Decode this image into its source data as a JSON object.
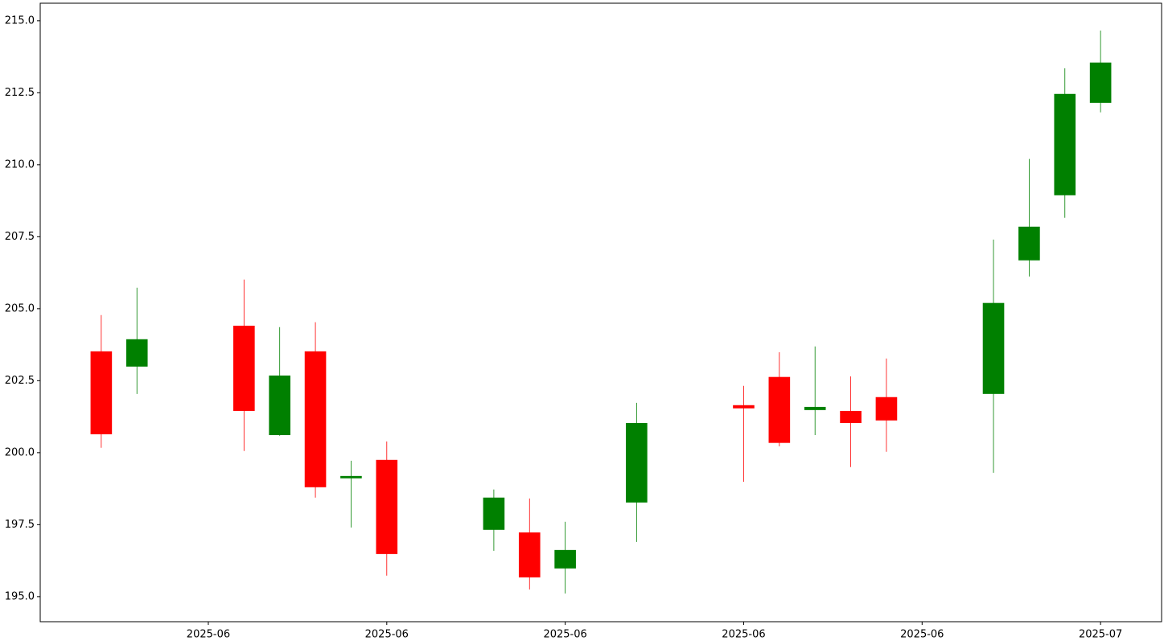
{
  "chart_data": {
    "type": "candlestick",
    "x": [
      20244,
      20245,
      20248,
      20249,
      20250,
      20251,
      20252,
      20255,
      20256,
      20257,
      20259,
      20262,
      20263,
      20264,
      20265,
      20266,
      20269,
      20270,
      20271,
      20272
    ],
    "open": [
      203.52,
      202.99,
      204.41,
      200.61,
      203.52,
      199.11,
      199.75,
      197.32,
      197.23,
      195.98,
      198.27,
      201.65,
      202.63,
      201.48,
      201.45,
      201.93,
      202.04,
      206.68,
      208.94,
      212.15
    ],
    "high": [
      204.78,
      205.73,
      206.01,
      204.36,
      204.53,
      199.72,
      200.39,
      198.72,
      198.41,
      197.6,
      201.73,
      202.32,
      203.49,
      203.69,
      202.65,
      203.27,
      207.4,
      210.2,
      213.35,
      214.66
    ],
    "low": [
      200.17,
      202.04,
      200.06,
      200.59,
      198.44,
      197.4,
      195.73,
      196.59,
      195.25,
      195.11,
      196.9,
      198.99,
      200.22,
      200.61,
      199.5,
      200.03,
      199.3,
      206.12,
      208.16,
      211.82
    ],
    "close": [
      200.64,
      203.94,
      201.45,
      202.68,
      198.8,
      199.19,
      196.48,
      198.44,
      195.67,
      196.62,
      201.03,
      201.54,
      200.34,
      201.59,
      201.03,
      201.12,
      205.2,
      207.85,
      212.46,
      213.55
    ],
    "up_color": "#008000",
    "down_color": "#ff0000",
    "xlim": [
      20242.29,
      20273.71
    ],
    "xticks": [
      {
        "value": 20247,
        "label": "2025-06"
      },
      {
        "value": 20252,
        "label": "2025-06"
      },
      {
        "value": 20257,
        "label": "2025-06"
      },
      {
        "value": 20262,
        "label": "2025-06"
      },
      {
        "value": 20267,
        "label": "2025-06"
      },
      {
        "value": 20272,
        "label": "2025-07"
      }
    ],
    "ylim": [
      194.13,
      215.61
    ],
    "yticks": [
      {
        "value": 195,
        "label": "195.0"
      },
      197.5,
      {
        "value": 200,
        "label": "200.0"
      },
      202.5,
      {
        "value": 205,
        "label": "205.0"
      },
      207.5,
      {
        "value": 210,
        "label": "210.0"
      },
      212.5,
      {
        "value": 215,
        "label": "215.0"
      }
    ],
    "grid": false
  }
}
